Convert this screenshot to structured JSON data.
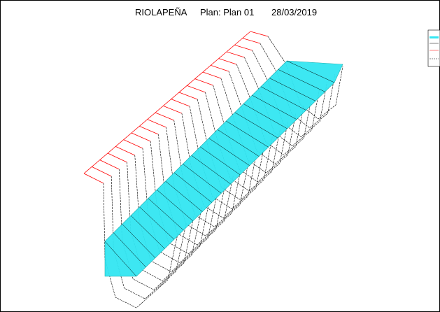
{
  "header": {
    "project": "RIOLAPEÑA",
    "plan": "Plan: Plan 01",
    "date": "28/03/2019"
  }
}
